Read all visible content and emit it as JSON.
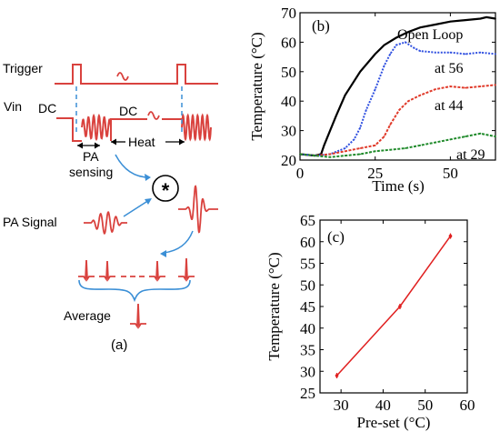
{
  "panel_a": {
    "label": "(a)",
    "trigger": "Trigger",
    "vin": "Vin",
    "dc_left": "DC",
    "dc_right": "DC",
    "heat": "Heat",
    "pa": "PA",
    "sensing": "sensing",
    "pa_signal": "PA Signal",
    "conv_symbol": "*",
    "average": "Average",
    "colors": {
      "signal": "#d9423e",
      "arrow": "#3b8fd6"
    }
  },
  "chart_data": [
    {
      "panel": "(b)",
      "type": "line",
      "xlabel": "Time (s)",
      "ylabel": "Temperature (°C)",
      "xlim": [
        0,
        65
      ],
      "ylim": [
        20,
        70
      ],
      "xticks": [
        0,
        25,
        50
      ],
      "yticks": [
        20,
        30,
        40,
        50,
        60,
        70
      ],
      "series": [
        {
          "name": "Open Loop",
          "color": "#000000",
          "style": "solid",
          "x": [
            0,
            5,
            7,
            8,
            10,
            12,
            15,
            20,
            25,
            28,
            32,
            36,
            40,
            45,
            50,
            55,
            60,
            62,
            65
          ],
          "y": [
            22,
            21.5,
            22,
            25,
            30,
            35,
            42,
            50,
            56,
            59,
            61.5,
            63.5,
            65,
            66,
            67,
            67.5,
            68,
            68.5,
            68
          ]
        },
        {
          "name": "at 56",
          "color": "#3050e0",
          "style": "dotted",
          "x": [
            0,
            5,
            10,
            15,
            18,
            20,
            22,
            25,
            28,
            30,
            32,
            35,
            38,
            40,
            45,
            50,
            55,
            60,
            65
          ],
          "y": [
            22,
            21.5,
            22,
            24,
            27,
            31,
            37,
            44,
            52,
            56,
            59,
            60,
            58,
            57,
            56.5,
            56.5,
            56,
            56.5,
            56
          ]
        },
        {
          "name": "at 44",
          "color": "#e03a2a",
          "style": "dashed",
          "x": [
            0,
            5,
            10,
            15,
            20,
            25,
            28,
            30,
            33,
            36,
            40,
            45,
            50,
            55,
            60,
            65
          ],
          "y": [
            22,
            21.5,
            22,
            23,
            24,
            25,
            28,
            32,
            37,
            40,
            42,
            44,
            45,
            44.5,
            45,
            45.5
          ]
        },
        {
          "name": "at 29",
          "color": "#1f8a2a",
          "style": "dashed",
          "x": [
            0,
            5,
            10,
            15,
            20,
            25,
            30,
            35,
            40,
            45,
            50,
            55,
            60,
            65
          ],
          "y": [
            22,
            21.5,
            21,
            21.5,
            22,
            23,
            23.5,
            24,
            25,
            26,
            27,
            28,
            29,
            28
          ]
        }
      ],
      "annotations": [
        "Open Loop",
        "at 56",
        "at 44",
        "at 29"
      ]
    },
    {
      "panel": "(c)",
      "type": "line",
      "xlabel": "Pre-set (°C)",
      "ylabel": "Temperature (°C)",
      "xlim": [
        25,
        60
      ],
      "ylim": [
        25,
        65
      ],
      "xticks": [
        30,
        40,
        50,
        60
      ],
      "yticks": [
        25,
        30,
        35,
        40,
        45,
        50,
        55,
        60,
        65
      ],
      "series": [
        {
          "color": "#e02020",
          "x": [
            29,
            44,
            56
          ],
          "y": [
            29,
            45,
            61.3
          ]
        }
      ]
    }
  ]
}
